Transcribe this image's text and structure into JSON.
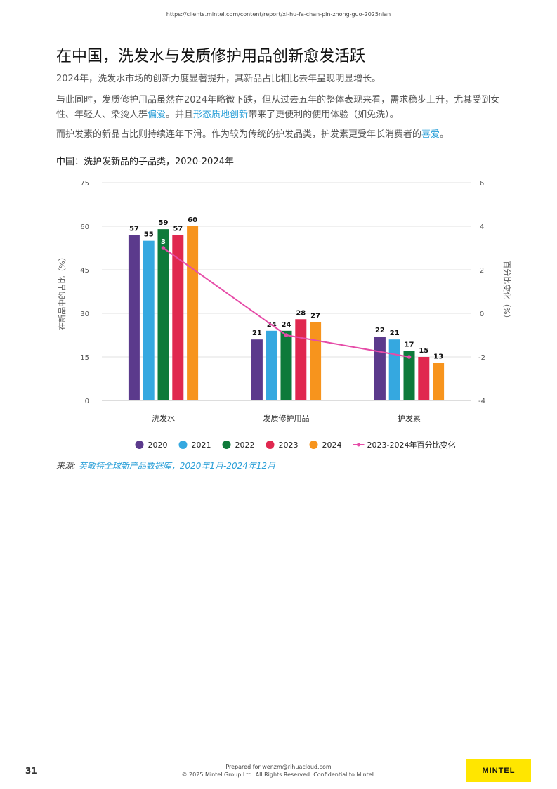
{
  "header": {
    "url": "https://clients.mintel.com/content/report/xi-hu-fa-chan-pin-zhong-guo-2025nian"
  },
  "page": {
    "title": "在中国，洗发水与发质修护用品创新愈发活跃",
    "para1": "2024年，洗发水市场的创新力度显著提升，其新品占比相比去年呈现明显增长。",
    "para2_a": "与此同时，发质修护用品虽然在2024年略微下跌，但从过去五年的整体表现来看，需求稳步上升，尤其受到女性、年轻人、染烫人群",
    "para2_link1": "偏爱",
    "para2_b": "。并且",
    "para2_link2": "形态质地创新",
    "para2_c": "带来了更便利的使用体验（如免洗）。",
    "para3_a": "而护发素的新品占比则持续连年下滑。作为较为传统的护发品类，护发素更受年长消费者的",
    "para3_link": "喜爱",
    "para3_b": "。",
    "chart_title": "中国：洗护发新品的子品类，2020-2024年",
    "source_label": "来源: ",
    "source_link": "英敏特全球新产品数据库，2020年1月-2024年12月"
  },
  "footer": {
    "page_number": "31",
    "prepared": "Prepared for wenzm@rihuacloud.com",
    "copyright": "© 2025 Mintel Group Ltd. All Rights Reserved. Confidential to Mintel.",
    "logo": "MINTEL"
  },
  "chart_data": {
    "type": "bar",
    "categories": [
      "洗发水",
      "发质修护用品",
      "护发素"
    ],
    "series": [
      {
        "name": "2020",
        "values": [
          57,
          21,
          22
        ],
        "color": "#5b3a8c"
      },
      {
        "name": "2021",
        "values": [
          55,
          24,
          21
        ],
        "color": "#35a8e0"
      },
      {
        "name": "2022",
        "values": [
          59,
          24,
          17
        ],
        "color": "#0e7a3a"
      },
      {
        "name": "2023",
        "values": [
          57,
          28,
          15
        ],
        "color": "#e0284f"
      },
      {
        "name": "2024",
        "values": [
          60,
          27,
          13
        ],
        "color": "#f7941d"
      }
    ],
    "line_series": {
      "name": "2023-2024年百分比变化",
      "values": [
        3,
        -1,
        -2
      ],
      "color": "#e64ca8",
      "labels": [
        "3",
        "",
        ""
      ]
    },
    "ylabel": "在新品中的占比（%）",
    "y2label": "百分比变化（%）",
    "ylim": [
      0,
      75
    ],
    "yticks": [
      0,
      15,
      30,
      45,
      60,
      75
    ],
    "y2lim": [
      -4,
      6
    ],
    "y2ticks": [
      -4,
      -2,
      0,
      2,
      4,
      6
    ],
    "grid": true,
    "legend_position": "bottom"
  }
}
